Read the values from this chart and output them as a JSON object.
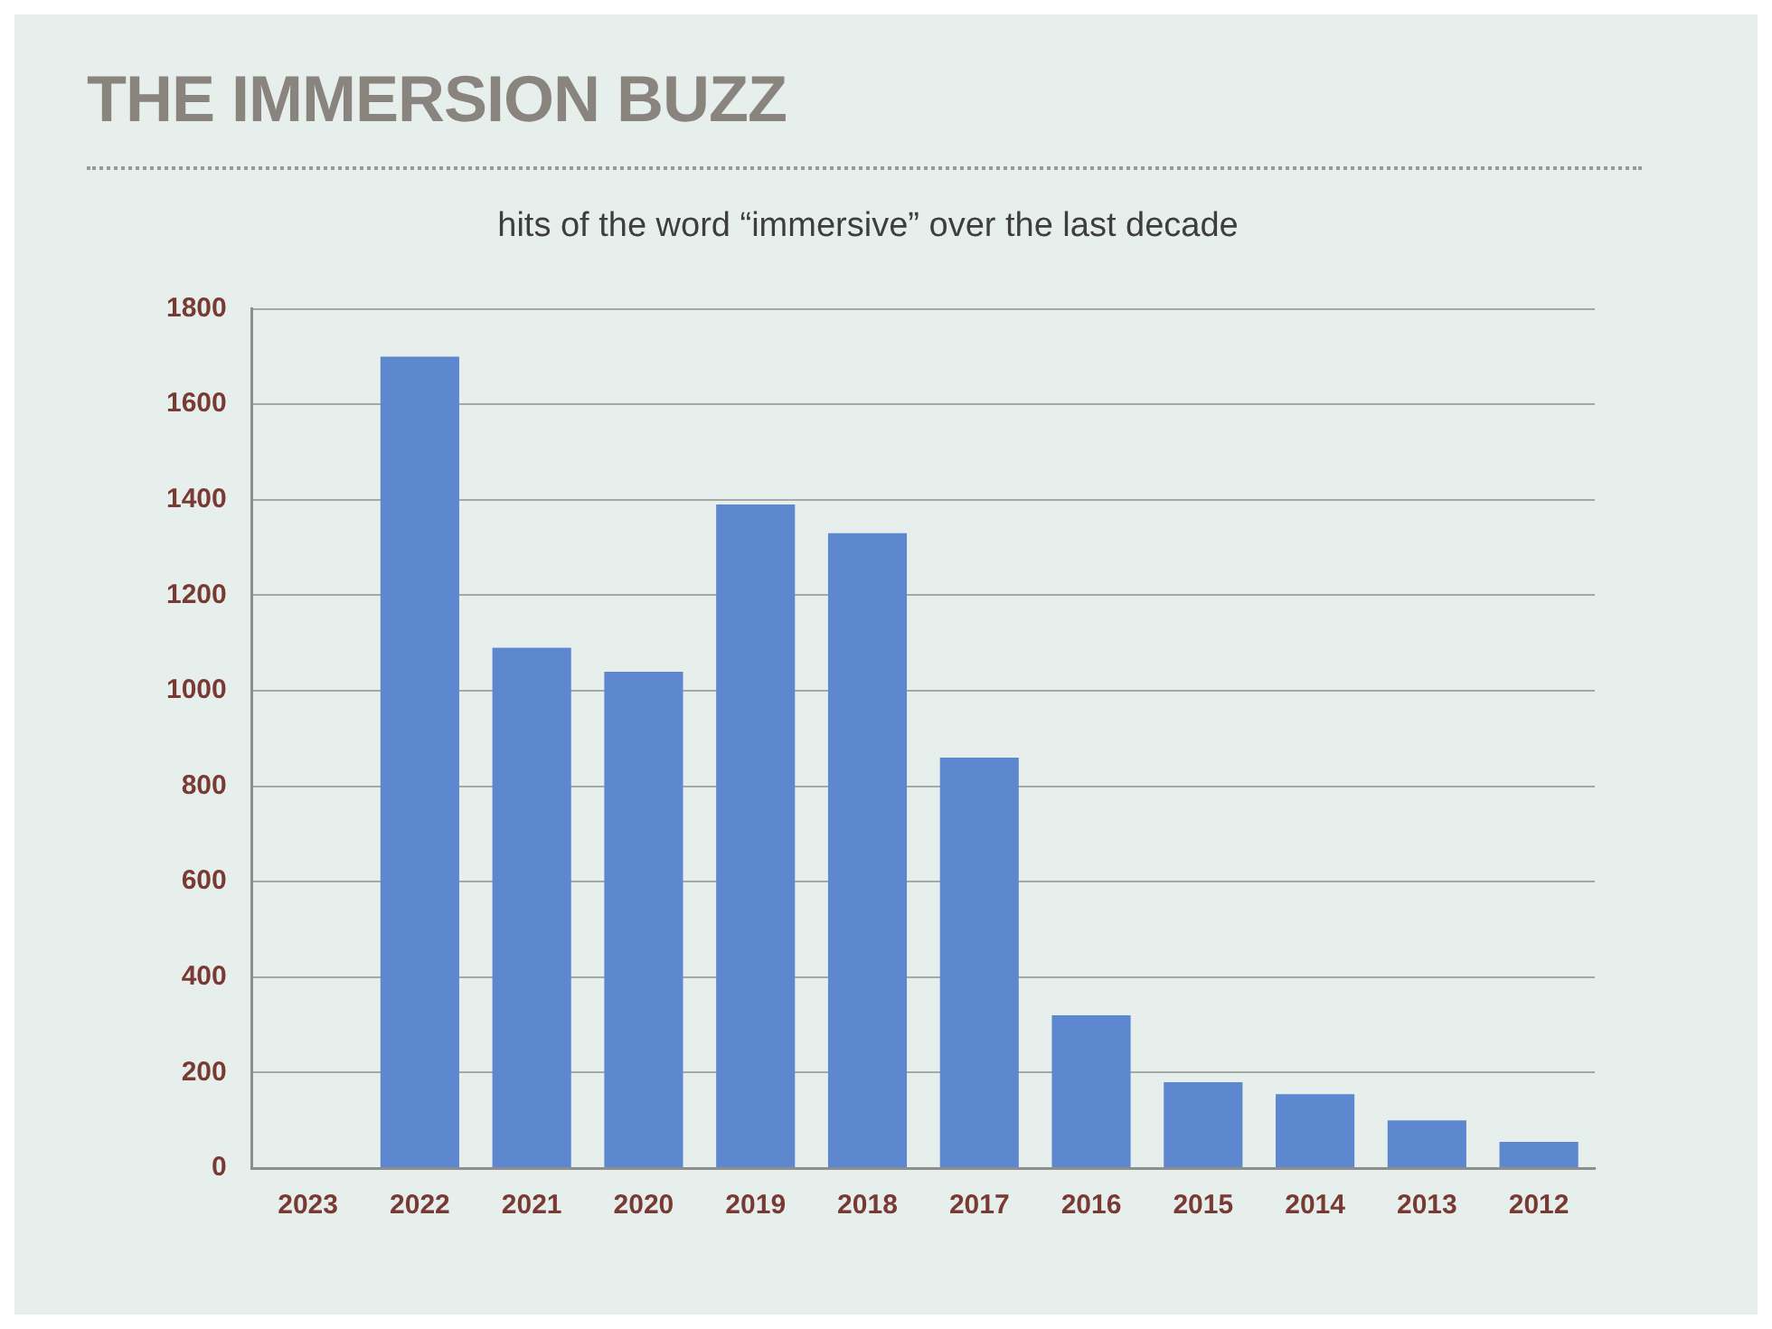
{
  "chart_data": {
    "type": "bar",
    "title": "THE IMMERSION BUZZ",
    "subtitle": "hits of the word “immersive” over the last decade",
    "categories": [
      "2023",
      "2022",
      "2021",
      "2020",
      "2019",
      "2018",
      "2017",
      "2016",
      "2015",
      "2014",
      "2013",
      "2012"
    ],
    "values": [
      null,
      1700,
      1090,
      1040,
      1390,
      1330,
      860,
      320,
      180,
      155,
      100,
      55
    ],
    "color": "#5d88d0",
    "ylim": [
      0,
      1800
    ],
    "yticks": [
      0,
      200,
      400,
      600,
      800,
      1000,
      1200,
      1400,
      1600,
      1800
    ],
    "grid": "y"
  }
}
